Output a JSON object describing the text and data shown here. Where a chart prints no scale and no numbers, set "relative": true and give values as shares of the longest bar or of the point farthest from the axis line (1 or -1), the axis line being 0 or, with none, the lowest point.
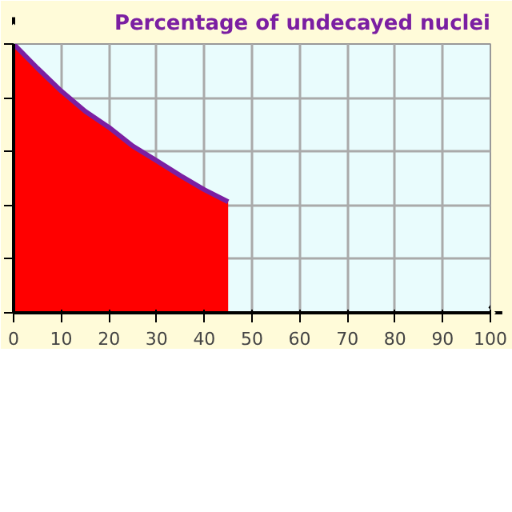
{
  "chart_data": {
    "type": "area",
    "title": "Percentage of undecayed nuclei",
    "relative": true,
    "x": [
      0,
      5,
      10,
      15,
      20,
      25,
      30,
      35,
      40,
      45
    ],
    "series": [
      {
        "color": "#ff0000",
        "values": [
          1.0,
          0.91,
          0.825,
          0.75,
          0.69,
          0.62,
          0.566,
          0.51,
          0.458,
          0.413
        ]
      },
      {
        "type": "line",
        "color": "#7b1fa2",
        "values": [
          1.0,
          0.91,
          0.825,
          0.75,
          0.69,
          0.62,
          0.566,
          0.51,
          0.458,
          0.413
        ]
      }
    ],
    "xlim": [
      0,
      100
    ],
    "xticks": [
      0,
      10,
      20,
      30,
      40,
      50,
      60,
      70,
      80,
      90,
      100
    ],
    "grid": true,
    "tick_labels": "x"
  }
}
